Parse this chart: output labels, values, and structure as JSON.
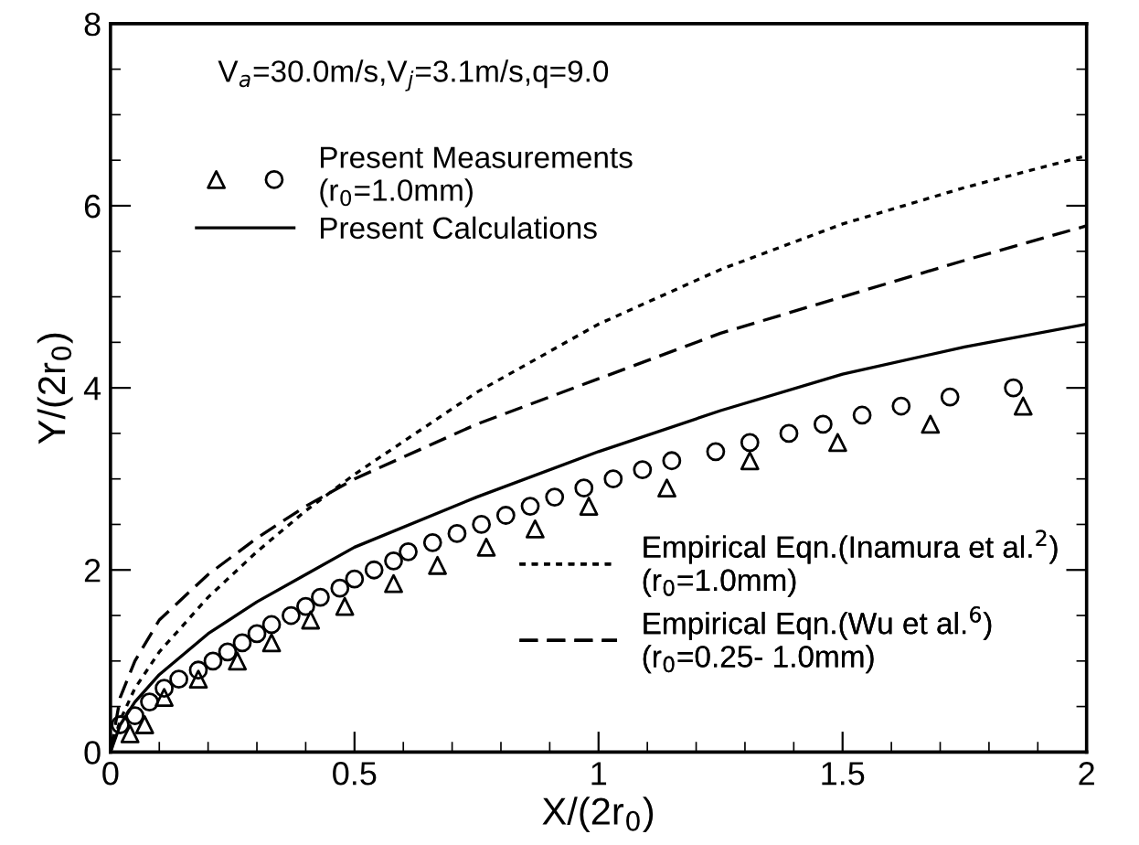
{
  "chart_data": {
    "type": "scatter",
    "xlabel": "X/(2r$_{0}$)",
    "ylabel": "Y/(2r$_{0}$)",
    "annotations": [
      "V$_{a}$=30.0m/s,V$_{j}$=3.1m/s,q=9.0"
    ],
    "xlim": [
      0,
      2
    ],
    "ylim": [
      0,
      8
    ],
    "xticks": [
      0,
      0.5,
      1,
      1.5,
      2
    ],
    "yticks": [
      0,
      2,
      4,
      6,
      8
    ],
    "grid": false,
    "legend": "top left",
    "series": [
      {
        "name": "Present Measurements\n(r$_{0}$=1.0mm)",
        "marker": "circle",
        "color": "#000000",
        "x": [
          0.02,
          0.05,
          0.08,
          0.11,
          0.14,
          0.18,
          0.21,
          0.24,
          0.27,
          0.3,
          0.33,
          0.37,
          0.4,
          0.43,
          0.47,
          0.5,
          0.54,
          0.58,
          0.61,
          0.66,
          0.71,
          0.76,
          0.81,
          0.86,
          0.91,
          0.97,
          1.03,
          1.09,
          1.15,
          1.24,
          1.31,
          1.39,
          1.46,
          1.54,
          1.62,
          1.72,
          1.85
        ],
        "values": [
          0.3,
          0.4,
          0.55,
          0.7,
          0.8,
          0.9,
          1.0,
          1.1,
          1.2,
          1.3,
          1.4,
          1.5,
          1.6,
          1.7,
          1.8,
          1.9,
          2.0,
          2.1,
          2.2,
          2.3,
          2.4,
          2.5,
          2.6,
          2.7,
          2.8,
          2.9,
          3.0,
          3.1,
          3.2,
          3.3,
          3.4,
          3.5,
          3.6,
          3.7,
          3.8,
          3.9,
          4.0
        ]
      },
      {
        "marker": "triangle",
        "color": "#000000",
        "x": [
          0.04,
          0.07,
          0.11,
          0.18,
          0.26,
          0.33,
          0.41,
          0.48,
          0.58,
          0.67,
          0.77,
          0.87,
          0.98,
          1.14,
          1.31,
          1.49,
          1.68,
          1.87
        ],
        "values": [
          0.2,
          0.3,
          0.6,
          0.8,
          1.0,
          1.2,
          1.45,
          1.6,
          1.85,
          2.05,
          2.25,
          2.45,
          2.7,
          2.9,
          3.2,
          3.4,
          3.6,
          3.8
        ]
      },
      {
        "name": "Present Calculations",
        "type": "line",
        "line_style": "solid",
        "color": "#000000",
        "x": [
          0,
          0.02,
          0.05,
          0.1,
          0.2,
          0.3,
          0.4,
          0.5,
          0.75,
          1.0,
          1.25,
          1.5,
          1.75,
          2.0
        ],
        "values": [
          0,
          0.3,
          0.55,
          0.85,
          1.3,
          1.65,
          1.95,
          2.25,
          2.8,
          3.3,
          3.75,
          4.15,
          4.45,
          4.7
        ]
      },
      {
        "name": "Empirical Eqn.(Inamura et al.$^{2}$)\n(r$_{0}$=1.0mm)",
        "type": "line",
        "line_style": "dotted",
        "color": "#000000",
        "x": [
          0,
          0.02,
          0.05,
          0.1,
          0.2,
          0.3,
          0.4,
          0.5,
          0.75,
          1.0,
          1.25,
          1.5,
          1.75,
          2.0
        ],
        "values": [
          0,
          0.35,
          0.7,
          1.1,
          1.7,
          2.2,
          2.65,
          3.05,
          3.95,
          4.7,
          5.3,
          5.8,
          6.2,
          6.55
        ]
      },
      {
        "name": "Empirical Eqn.(Wu et al.$^{6}$)\n(r$_{0}$=0.25- 1.0mm)",
        "type": "line",
        "line_style": "dashed",
        "color": "#000000",
        "x": [
          0,
          0.02,
          0.05,
          0.1,
          0.2,
          0.3,
          0.4,
          0.5,
          0.75,
          1.0,
          1.25,
          1.5,
          1.75,
          2.0
        ],
        "values": [
          0,
          0.6,
          1.0,
          1.45,
          1.95,
          2.35,
          2.7,
          3.0,
          3.6,
          4.1,
          4.6,
          5.0,
          5.4,
          5.78
        ]
      }
    ]
  }
}
